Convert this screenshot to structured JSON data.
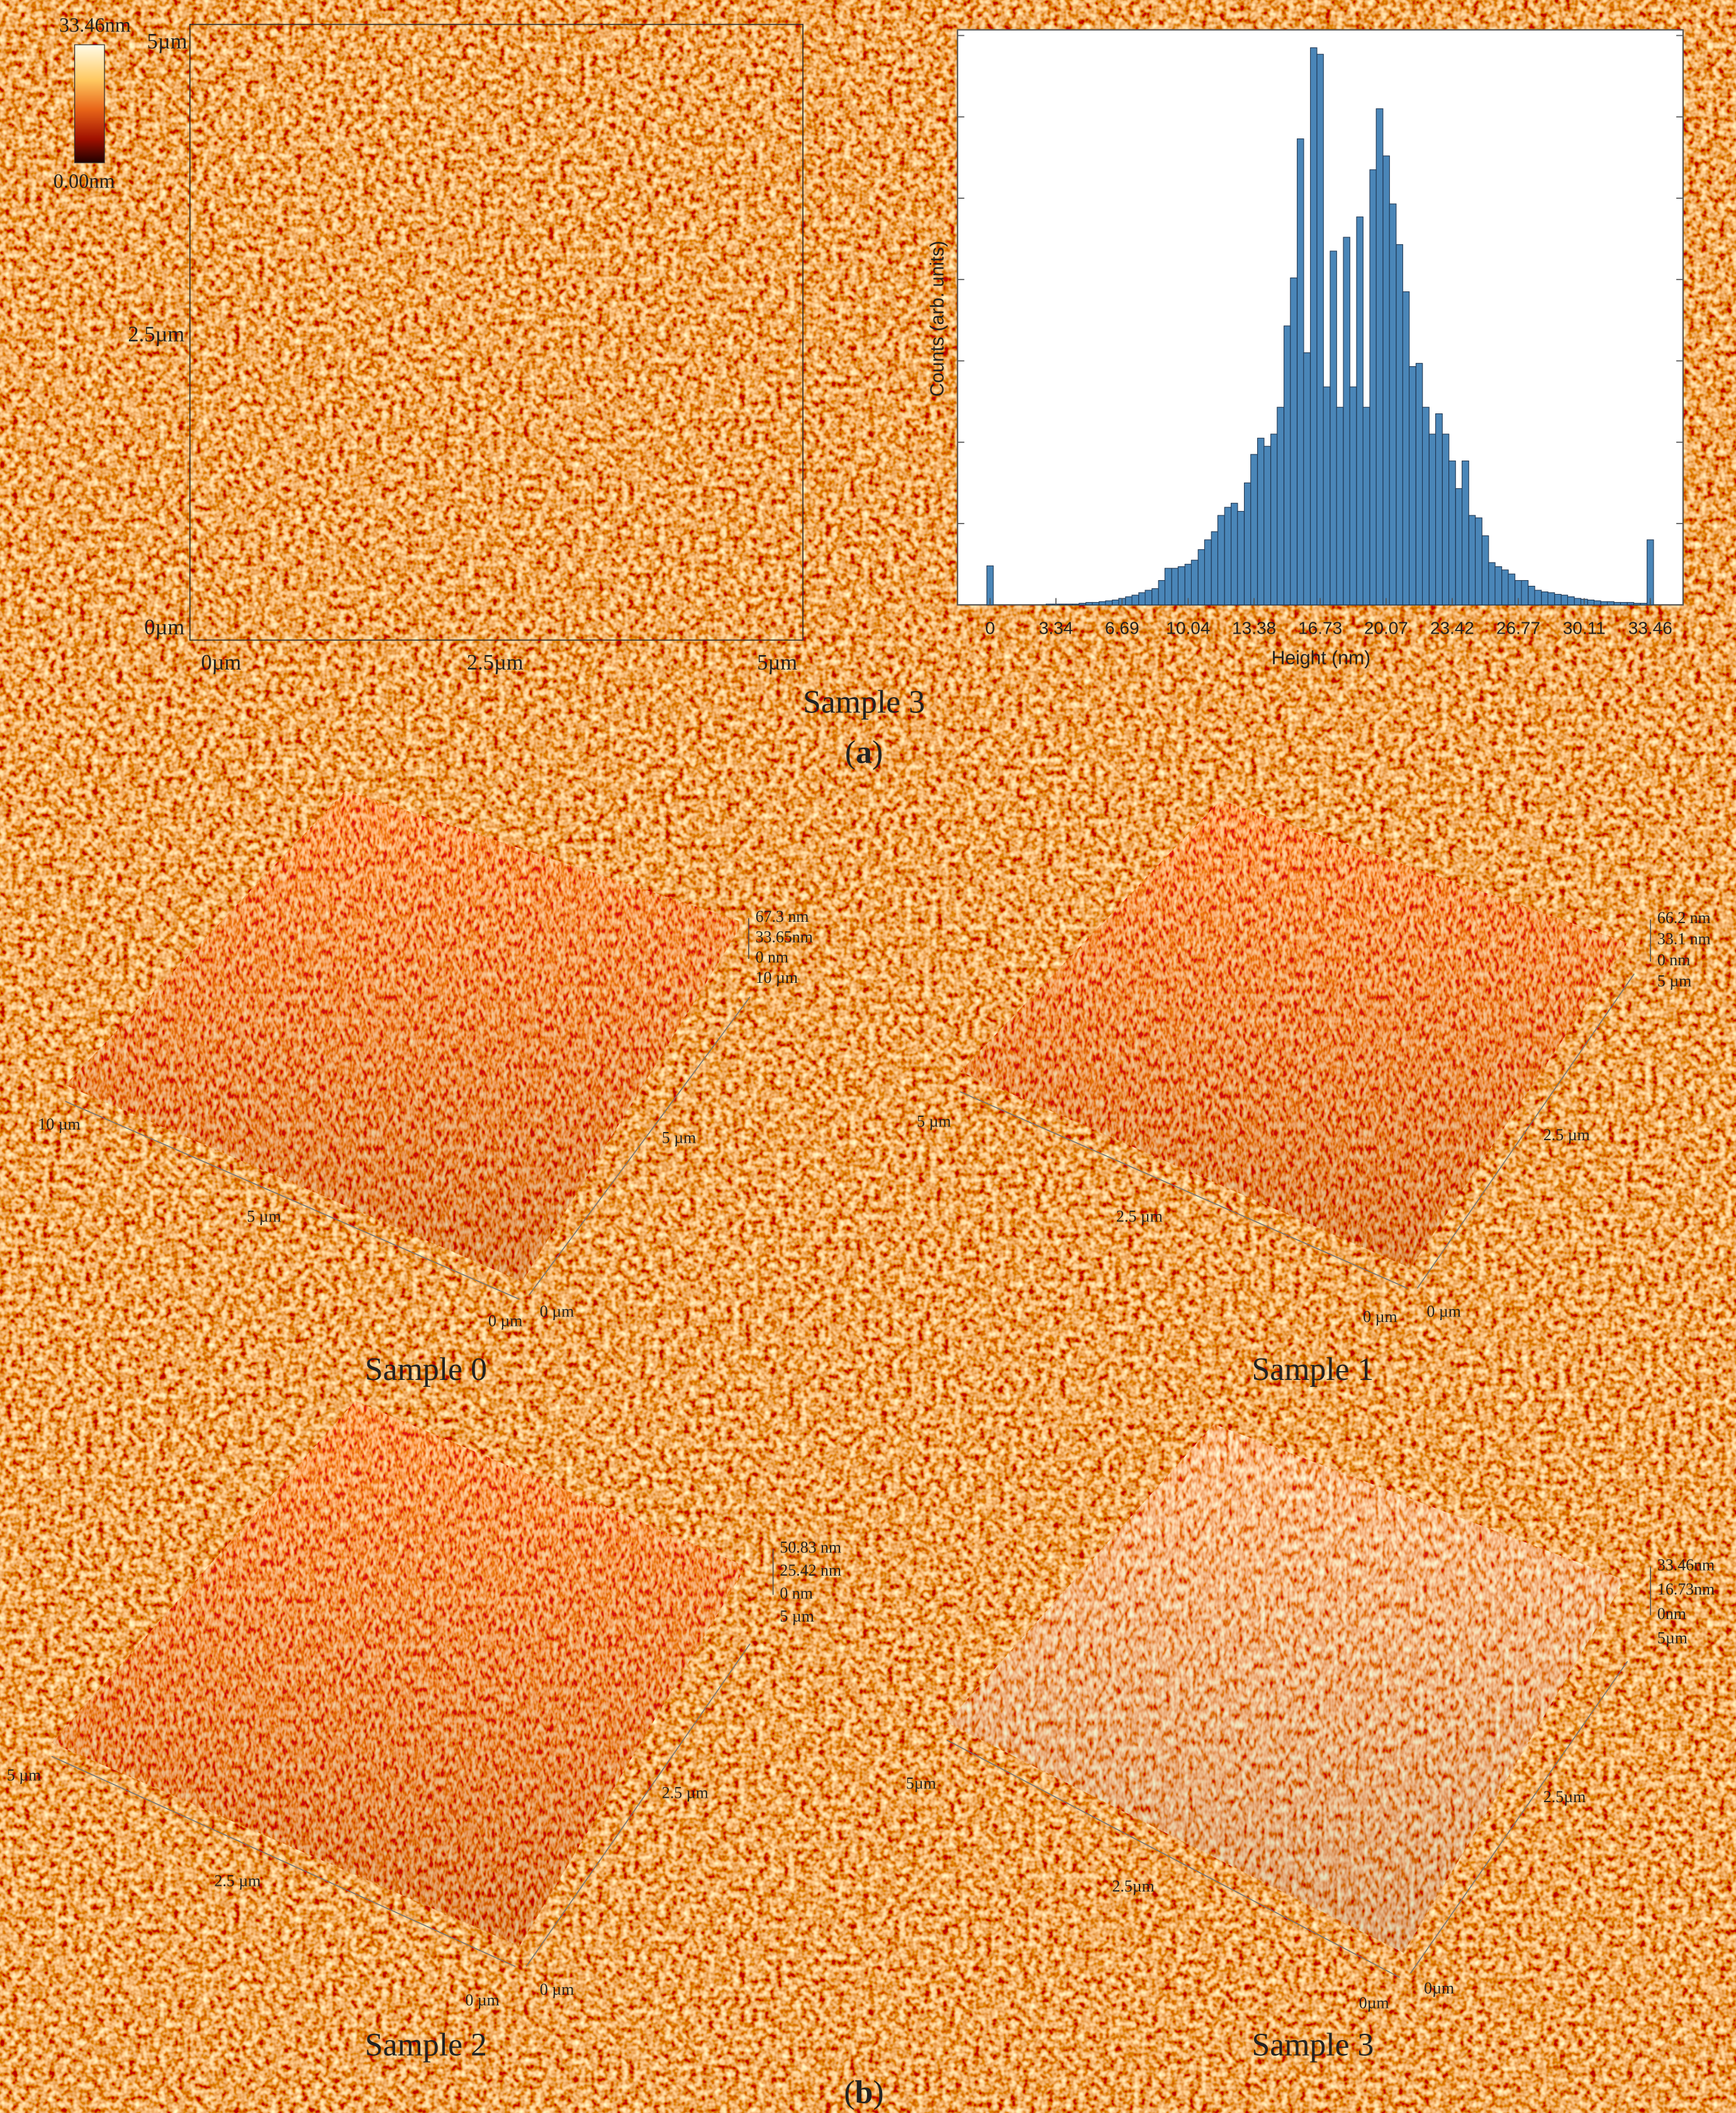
{
  "chart_data": {
    "type": "bar",
    "ylabel": "Counts (arb. units)",
    "xlabel": "Height (nm)",
    "color": "#4a86b8",
    "x": [
      0,
      0.33,
      0.67,
      1.0,
      1.34,
      1.67,
      2.01,
      2.34,
      2.68,
      3.01,
      3.35,
      3.68,
      4.02,
      4.35,
      4.68,
      5.02,
      5.35,
      5.69,
      6.02,
      6.36,
      6.69,
      7.03,
      7.36,
      7.7,
      8.03,
      8.37,
      8.7,
      9.03,
      9.37,
      9.7,
      10.04,
      10.37,
      10.71,
      11.04,
      11.38,
      11.71,
      12.05,
      12.38,
      12.71,
      13.05,
      13.38,
      13.72,
      14.05,
      14.39,
      14.72,
      15.06,
      15.39,
      15.73,
      16.06,
      16.4,
      16.73,
      17.06,
      17.4,
      17.73,
      18.07,
      18.4,
      18.74,
      19.07,
      19.41,
      19.74,
      20.08,
      20.41,
      20.75,
      21.08,
      21.41,
      21.75,
      22.08,
      22.42,
      22.75,
      23.09,
      23.42,
      23.76,
      24.09,
      24.43,
      24.76,
      25.1,
      25.43,
      25.76,
      26.1,
      26.43,
      26.77,
      27.1,
      27.44,
      27.77,
      28.11,
      28.44,
      28.78,
      29.11,
      29.44,
      29.78,
      30.11,
      30.45,
      30.78,
      31.12,
      31.45,
      31.79,
      32.12,
      32.46,
      32.79,
      33.13,
      33.46
    ],
    "values": [
      0.48,
      0,
      0,
      0,
      0,
      0,
      0,
      0,
      0,
      0.01,
      0.01,
      0.01,
      0.01,
      0.01,
      0.02,
      0.03,
      0.03,
      0.04,
      0.05,
      0.06,
      0.08,
      0.1,
      0.12,
      0.15,
      0.18,
      0.2,
      0.3,
      0.45,
      0.45,
      0.47,
      0.5,
      0.55,
      0.68,
      0.8,
      0.9,
      1.1,
      1.2,
      1.25,
      1.15,
      1.5,
      1.85,
      2.05,
      1.95,
      2.1,
      2.43,
      3.43,
      4.02,
      5.73,
      3.1,
      6.85,
      6.77,
      2.68,
      4.35,
      2.43,
      4.52,
      2.68,
      4.77,
      2.43,
      5.35,
      6.1,
      5.52,
      4.93,
      4.43,
      3.85,
      2.93,
      2.97,
      2.43,
      2.1,
      2.35,
      2.1,
      1.77,
      1.43,
      1.77,
      1.1,
      1.07,
      0.85,
      0.52,
      0.47,
      0.43,
      0.38,
      0.3,
      0.3,
      0.23,
      0.18,
      0.16,
      0.15,
      0.13,
      0.12,
      0.1,
      0.08,
      0.07,
      0.06,
      0.05,
      0.04,
      0.04,
      0.03,
      0.03,
      0.03,
      0.02,
      0.02,
      0.8
    ],
    "xlim": [
      -1.65,
      35.12
    ],
    "xticks": [
      0,
      3.34,
      6.69,
      10.04,
      13.38,
      16.73,
      20.07,
      23.42,
      26.77,
      30.11,
      33.46
    ],
    "ylim": [
      0,
      7.07
    ],
    "yticks": [
      0,
      1,
      2,
      3,
      4,
      5,
      6,
      7
    ]
  },
  "panel_a": {
    "colorbar": [
      "33.46nm",
      "0.00nm"
    ],
    "map_y_labels": [
      "5µm",
      "2.5µm",
      "0µm"
    ],
    "map_x_labels": [
      "0µm",
      "2.5µm",
      "5µm"
    ],
    "caption": "Sample 3",
    "label": [
      "(",
      "a",
      ")"
    ]
  },
  "panel_b": {
    "surfaces": [
      {
        "z_labels": [
          "67.3 nm",
          "33.65nm",
          "0 nm",
          "10 µm"
        ],
        "axis_labels": [
          "10 µm",
          "5 µm",
          "0 µm",
          "5 µm",
          "0 µm"
        ],
        "caption": "Sample 0"
      },
      {
        "z_labels": [
          "66.2 nm",
          "33.1 nm",
          "0 nm",
          "5 µm"
        ],
        "axis_labels": [
          "5 µm",
          "2.5 µm",
          "0 µm",
          "2.5 µm",
          "0 µm"
        ],
        "caption": "Sample 1"
      },
      {
        "z_labels": [
          "50.83 nm",
          "25.42 nm",
          "0 nm",
          "5 µm"
        ],
        "axis_labels": [
          "5 µm",
          "2.5 µm",
          "0 µm",
          "2.5 µm",
          "0 µm"
        ],
        "caption": "Sample 2"
      },
      {
        "z_labels": [
          "33.46nm",
          "16.73nm",
          "0nm",
          "5µm"
        ],
        "axis_labels": [
          "5µm",
          "2.5µm",
          "0µm",
          "2.5µm",
          "0µm"
        ],
        "caption": "Sample 3"
      }
    ],
    "label": [
      "(",
      "b",
      ")"
    ]
  }
}
